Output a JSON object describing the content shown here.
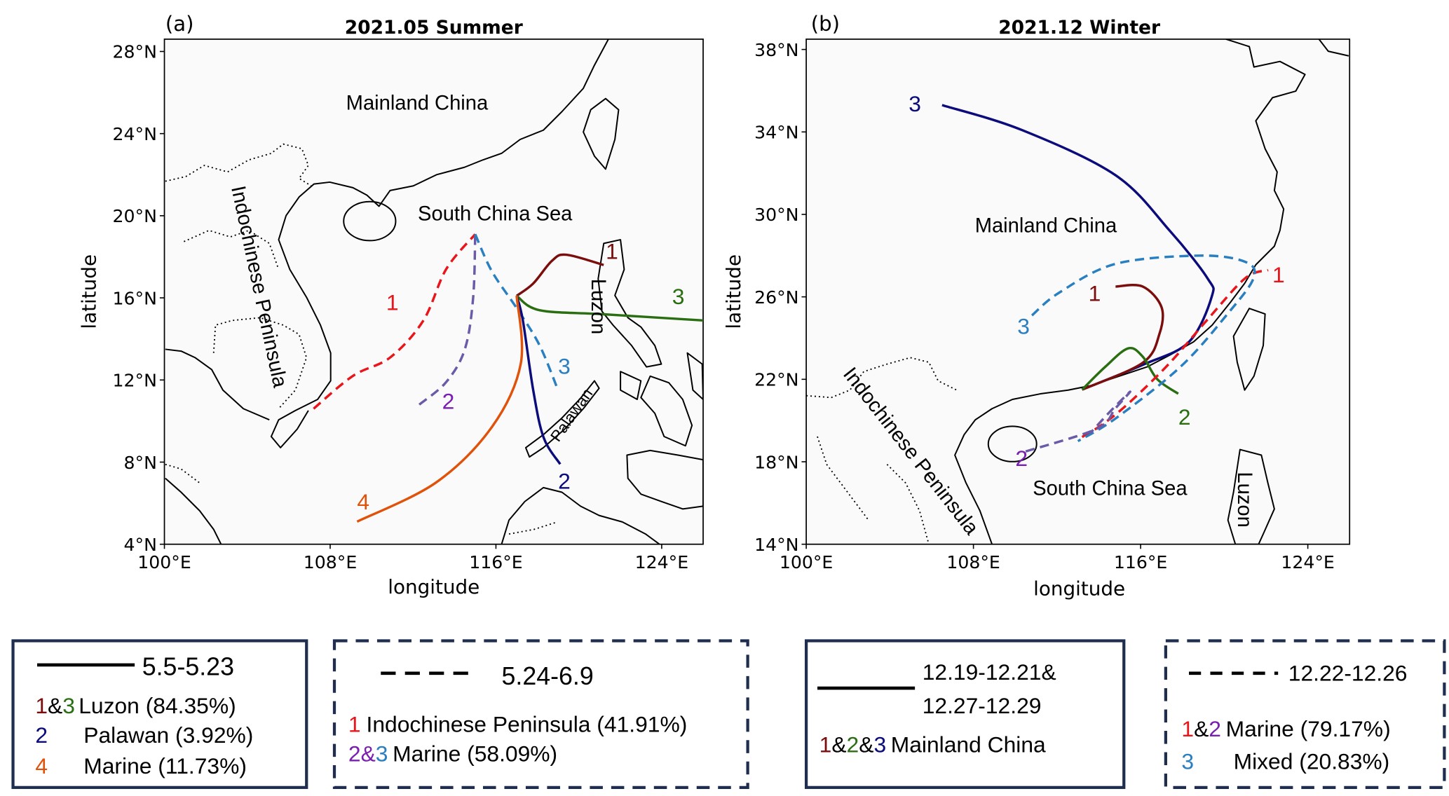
{
  "colors": {
    "dark_red": "#7b0d0d",
    "green": "#2a6e12",
    "navy": "#0b0b7c",
    "orange": "#e0520a",
    "red": "#e8161b",
    "purple_label": "#7a1fb0",
    "purple_line": "#6a5aa8",
    "blue": "#2a7fc0",
    "legend_border": "#1f2d4f"
  },
  "maps": [
    {
      "panel": "(a)",
      "title": "2021.05 Summer",
      "xlabel": "longitude",
      "ylabel": "latitude",
      "lon_range": [
        100,
        126
      ],
      "lat_range": [
        4,
        28.6
      ],
      "lon_ticks": [
        {
          "v": 100,
          "label": "100°E"
        },
        {
          "v": 108,
          "label": "108°E"
        },
        {
          "v": 116,
          "label": "116°E"
        },
        {
          "v": 124,
          "label": "124°E"
        }
      ],
      "lat_ticks": [
        {
          "v": 4,
          "label": "4°N"
        },
        {
          "v": 8,
          "label": "8°N"
        },
        {
          "v": 12,
          "label": "12°N"
        },
        {
          "v": 16,
          "label": "16°N"
        },
        {
          "v": 20,
          "label": "20°N"
        },
        {
          "v": 24,
          "label": "24°N"
        },
        {
          "v": 28,
          "label": "28°N"
        }
      ],
      "regions": {
        "mainland": "Mainland China",
        "sea": "South China Sea",
        "indochina": "Indochinese Peninsula",
        "luzon": "Luzon",
        "palawan": "Palawan"
      },
      "trajectories": [
        {
          "id": "1",
          "color": "#e8161b",
          "label_color": "#e8161b",
          "dashed": true,
          "points": [
            [
              107.2,
              10.6
            ],
            [
              109.1,
              12.2
            ],
            [
              110.9,
              13.1
            ],
            [
              112.5,
              14.9
            ],
            [
              113.6,
              17.4
            ],
            [
              115.0,
              19.1
            ]
          ],
          "label_at": [
            111.0,
            15.4
          ]
        },
        {
          "id": "2",
          "color": "#6a5aa8",
          "label_color": "#7a1fb0",
          "dashed": true,
          "points": [
            [
              112.3,
              10.8
            ],
            [
              113.6,
              11.9
            ],
            [
              114.5,
              13.5
            ],
            [
              114.9,
              16.0
            ],
            [
              115.0,
              19.1
            ]
          ],
          "label_at": [
            113.7,
            10.6
          ]
        },
        {
          "id": "3",
          "color": "#2a7fc0",
          "label_color": "#2a7fc0",
          "dashed": true,
          "points": [
            [
              115.0,
              19.1
            ],
            [
              115.8,
              17.3
            ],
            [
              117.0,
              15.5
            ],
            [
              118.1,
              13.7
            ],
            [
              119.0,
              11.5
            ]
          ],
          "label_at": [
            119.3,
            12.3
          ]
        },
        {
          "id": "1",
          "color": "#7b0d0d",
          "label_color": "#7b0d0d",
          "dashed": false,
          "points": [
            [
              117.0,
              16.1
            ],
            [
              117.8,
              16.7
            ],
            [
              118.7,
              17.8
            ],
            [
              119.4,
              18.1
            ],
            [
              121.2,
              17.6
            ]
          ],
          "label_at": [
            121.6,
            17.9
          ]
        },
        {
          "id": "3",
          "color": "#2a6e12",
          "label_color": "#2a6e12",
          "dashed": false,
          "points": [
            [
              117.0,
              16.1
            ],
            [
              118.1,
              15.4
            ],
            [
              121.2,
              15.2
            ],
            [
              126.0,
              14.9
            ]
          ],
          "label_at": [
            124.8,
            15.7
          ]
        },
        {
          "id": "2",
          "color": "#0b0b7c",
          "label_color": "#0b0b7c",
          "dashed": false,
          "points": [
            [
              117.0,
              16.1
            ],
            [
              117.3,
              14.9
            ],
            [
              117.8,
              11.5
            ],
            [
              118.3,
              9.2
            ],
            [
              119.1,
              7.9
            ]
          ],
          "label_at": [
            119.3,
            6.7
          ]
        },
        {
          "id": "4",
          "color": "#e0520a",
          "label_color": "#e0520a",
          "dashed": false,
          "points": [
            [
              117.0,
              16.1
            ],
            [
              117.2,
              12.8
            ],
            [
              115.8,
              9.7
            ],
            [
              113.1,
              7.0
            ],
            [
              109.3,
              5.1
            ]
          ],
          "label_at": [
            109.6,
            5.7
          ]
        }
      ]
    },
    {
      "panel": "(b)",
      "title": "2021.12 Winter",
      "xlabel": "longitude",
      "ylabel": "latitude",
      "lon_range": [
        100,
        126
      ],
      "lat_range": [
        14,
        38.5
      ],
      "lon_ticks": [
        {
          "v": 100,
          "label": "100°E"
        },
        {
          "v": 108,
          "label": "108°E"
        },
        {
          "v": 116,
          "label": "116°E"
        },
        {
          "v": 124,
          "label": "124°E"
        }
      ],
      "lat_ticks": [
        {
          "v": 14,
          "label": "14°N"
        },
        {
          "v": 18,
          "label": "18°N"
        },
        {
          "v": 22,
          "label": "22°N"
        },
        {
          "v": 26,
          "label": "26°N"
        },
        {
          "v": 30,
          "label": "30°N"
        },
        {
          "v": 34,
          "label": "34°N"
        },
        {
          "v": 38,
          "label": "38°N"
        }
      ],
      "regions": {
        "mainland": "Mainland China",
        "sea": "South China Sea",
        "indochina": "Indochinese Peninsula",
        "luzon": "Luzon"
      },
      "trajectories": [
        {
          "id": "3",
          "color": "#0b0b7c",
          "label_color": "#0b0b7c",
          "dashed": false,
          "points": [
            [
              106.5,
              35.3
            ],
            [
              110.3,
              34.1
            ],
            [
              114.8,
              31.9
            ],
            [
              117.4,
              29.2
            ],
            [
              119.2,
              26.9
            ],
            [
              119.4,
              26.0
            ],
            [
              118.3,
              23.8
            ],
            [
              116.1,
              22.7
            ],
            [
              113.2,
              21.5
            ]
          ],
          "label_at": [
            105.2,
            35.0
          ]
        },
        {
          "id": "1",
          "color": "#7b0d0d",
          "label_color": "#7b0d0d",
          "dashed": false,
          "points": [
            [
              114.8,
              26.5
            ],
            [
              116.1,
              26.5
            ],
            [
              117.0,
              25.5
            ],
            [
              116.9,
              24.2
            ],
            [
              116.1,
              22.8
            ],
            [
              113.2,
              21.5
            ]
          ],
          "label_at": [
            113.8,
            25.8
          ]
        },
        {
          "id": "2",
          "color": "#2a6e12",
          "label_color": "#2a6e12",
          "dashed": false,
          "points": [
            [
              113.2,
              21.5
            ],
            [
              114.3,
              22.6
            ],
            [
              115.4,
              23.5
            ],
            [
              116.1,
              23.1
            ],
            [
              116.8,
              22.0
            ],
            [
              117.8,
              21.3
            ]
          ],
          "label_at": [
            118.1,
            19.8
          ]
        },
        {
          "id": "1",
          "color": "#e8161b",
          "label_color": "#e8161b",
          "dashed": true,
          "points": [
            [
              113.2,
              19.2
            ],
            [
              114.3,
              19.9
            ],
            [
              115.6,
              21.0
            ],
            [
              117.4,
              22.8
            ],
            [
              119.2,
              24.9
            ],
            [
              121.0,
              26.9
            ],
            [
              122.1,
              27.3
            ]
          ],
          "label_at": [
            122.6,
            26.7
          ]
        },
        {
          "id": "3",
          "color": "#2a7fc0",
          "label_color": "#2a7fc0",
          "dashed": true,
          "points": [
            [
              110.8,
              25.1
            ],
            [
              112.1,
              26.2
            ],
            [
              114.8,
              27.6
            ],
            [
              118.8,
              28.0
            ],
            [
              121.0,
              27.7
            ],
            [
              121.4,
              26.9
            ],
            [
              120.1,
              25.1
            ],
            [
              117.9,
              22.6
            ],
            [
              114.8,
              20.1
            ],
            [
              113.0,
              19.0
            ]
          ],
          "label_at": [
            110.4,
            24.2
          ]
        },
        {
          "id": "2",
          "color": "#6a5aa8",
          "label_color": "#7a1fb0",
          "dashed": true,
          "points": [
            [
              110.5,
              18.5
            ],
            [
              113.9,
              19.6
            ],
            [
              114.8,
              20.6
            ],
            [
              115.5,
              21.4
            ],
            [
              114.6,
              20.5
            ],
            [
              113.6,
              19.4
            ]
          ],
          "label_at": [
            110.3,
            17.8
          ]
        }
      ]
    }
  ],
  "legends": [
    {
      "style": "solid",
      "period": "5.5-5.23",
      "entries": [
        {
          "parts": [
            {
              "t": "1",
              "c": "#7b0d0d"
            },
            {
              "t": "&",
              "c": "#000"
            },
            {
              "t": "3",
              "c": "#2a6e12"
            }
          ],
          "text": "Luzon (84.35%)"
        },
        {
          "parts": [
            {
              "t": "2",
              "c": "#0b0b7c"
            }
          ],
          "text": "Palawan (3.92%)"
        },
        {
          "parts": [
            {
              "t": "4",
              "c": "#e0520a"
            }
          ],
          "text": "Marine (11.73%)"
        }
      ]
    },
    {
      "style": "dashed",
      "period": "5.24-6.9",
      "entries": [
        {
          "parts": [
            {
              "t": "1",
              "c": "#e8161b"
            }
          ],
          "text": "Indochinese Peninsula (41.91%)"
        },
        {
          "parts": [
            {
              "t": "2",
              "c": "#7a1fb0"
            },
            {
              "t": "&",
              "c": "#7a1fb0"
            },
            {
              "t": "3",
              "c": "#2a7fc0"
            }
          ],
          "text": "Marine (58.09%)"
        }
      ]
    },
    {
      "style": "solid",
      "period_lines": [
        "12.19-12.21&",
        "12.27-12.29"
      ],
      "entries": [
        {
          "parts": [
            {
              "t": "1",
              "c": "#7b0d0d"
            },
            {
              "t": "&",
              "c": "#000"
            },
            {
              "t": "2",
              "c": "#2a6e12"
            },
            {
              "t": "&",
              "c": "#000"
            },
            {
              "t": "3",
              "c": "#0b0b7c"
            }
          ],
          "text": "Mainland China"
        }
      ]
    },
    {
      "style": "dashed",
      "period": "12.22-12.26",
      "entries": [
        {
          "parts": [
            {
              "t": "1",
              "c": "#e8161b"
            },
            {
              "t": "&",
              "c": "#000"
            },
            {
              "t": "2",
              "c": "#7a1fb0"
            }
          ],
          "text": "Marine (79.17%)"
        },
        {
          "parts": [
            {
              "t": "3",
              "c": "#2a7fc0"
            }
          ],
          "text": "Mixed (20.83%)"
        }
      ]
    }
  ]
}
